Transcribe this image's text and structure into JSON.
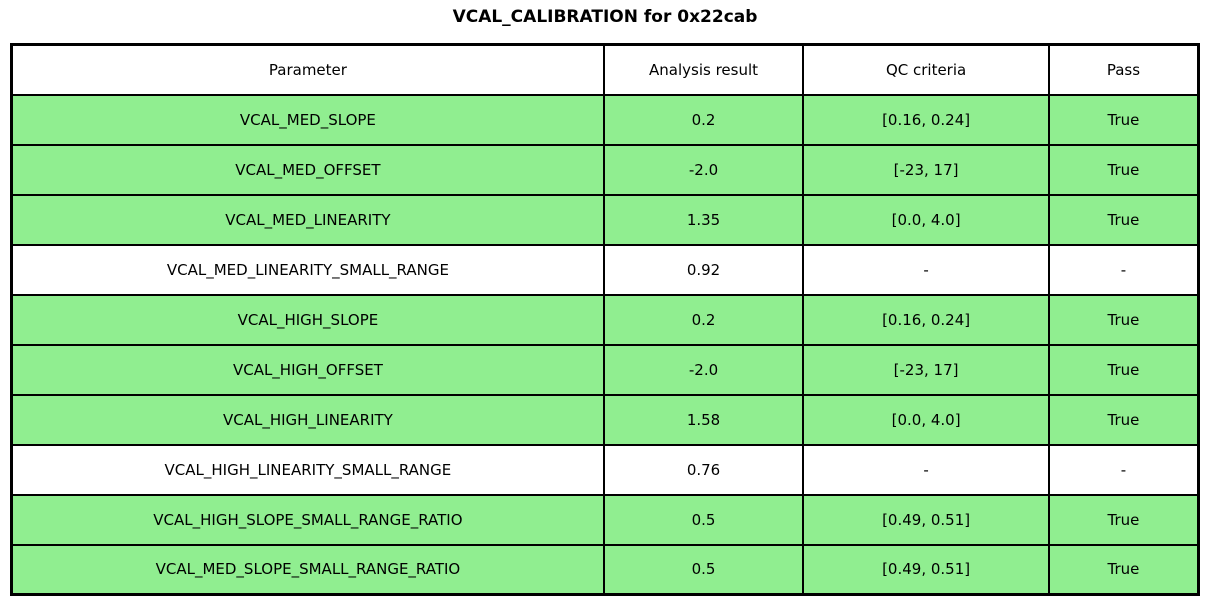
{
  "chart_data": {
    "type": "table",
    "title": "VCAL_CALIBRATION for 0x22cab",
    "columns": [
      "Parameter",
      "Analysis result",
      "QC criteria",
      "Pass"
    ],
    "rows": [
      {
        "parameter": "VCAL_MED_SLOPE",
        "analysis_result": "0.2",
        "qc_criteria": "[0.16, 0.24]",
        "pass": "True",
        "row_color": "#90EE90"
      },
      {
        "parameter": "VCAL_MED_OFFSET",
        "analysis_result": "-2.0",
        "qc_criteria": "[-23, 17]",
        "pass": "True",
        "row_color": "#90EE90"
      },
      {
        "parameter": "VCAL_MED_LINEARITY",
        "analysis_result": "1.35",
        "qc_criteria": "[0.0, 4.0]",
        "pass": "True",
        "row_color": "#90EE90"
      },
      {
        "parameter": "VCAL_MED_LINEARITY_SMALL_RANGE",
        "analysis_result": "0.92",
        "qc_criteria": "-",
        "pass": "-",
        "row_color": "#FFFFFF"
      },
      {
        "parameter": "VCAL_HIGH_SLOPE",
        "analysis_result": "0.2",
        "qc_criteria": "[0.16, 0.24]",
        "pass": "True",
        "row_color": "#90EE90"
      },
      {
        "parameter": "VCAL_HIGH_OFFSET",
        "analysis_result": "-2.0",
        "qc_criteria": "[-23, 17]",
        "pass": "True",
        "row_color": "#90EE90"
      },
      {
        "parameter": "VCAL_HIGH_LINEARITY",
        "analysis_result": "1.58",
        "qc_criteria": "[0.0, 4.0]",
        "pass": "True",
        "row_color": "#90EE90"
      },
      {
        "parameter": "VCAL_HIGH_LINEARITY_SMALL_RANGE",
        "analysis_result": "0.76",
        "qc_criteria": "-",
        "pass": "-",
        "row_color": "#FFFFFF"
      },
      {
        "parameter": "VCAL_HIGH_SLOPE_SMALL_RANGE_RATIO",
        "analysis_result": "0.5",
        "qc_criteria": "[0.49, 0.51]",
        "pass": "True",
        "row_color": "#90EE90"
      },
      {
        "parameter": "VCAL_MED_SLOPE_SMALL_RANGE_RATIO",
        "analysis_result": "0.5",
        "qc_criteria": "[0.49, 0.51]",
        "pass": "True",
        "row_color": "#90EE90"
      }
    ],
    "layout": {
      "legend": "none",
      "grid": "table-borders",
      "pass_row_color": "#90EE90",
      "neutral_row_color": "#FFFFFF",
      "border_color": "#000000",
      "header_background": "#FFFFFF"
    }
  }
}
